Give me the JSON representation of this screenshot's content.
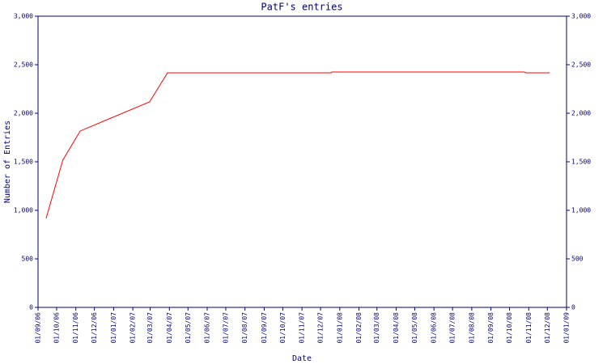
{
  "chart_data": {
    "type": "line",
    "title": "PatF's entries",
    "xlabel": "Date",
    "ylabel": "Number of Entries",
    "x": [
      "2006-09-14",
      "2006-10-11",
      "2006-11-08",
      "2007-02-28",
      "2007-03-29",
      "2007-12-18",
      "2007-12-19",
      "2008-10-25",
      "2008-10-27",
      "2008-12-05"
    ],
    "series": [
      {
        "name": "PatF",
        "color": "#ff0000",
        "values": [
          917,
          1517,
          1817,
          2117,
          2417,
          2417,
          2425,
          2425,
          2417,
          2417
        ]
      }
    ],
    "xlim": [
      "2006-09-01",
      "2009-01-01"
    ],
    "xticks": [
      {
        "value": "2006-09-01",
        "label": "01/09/06"
      },
      {
        "value": "2006-10-01",
        "label": "01/10/06"
      },
      {
        "value": "2006-11-01",
        "label": "01/11/06"
      },
      {
        "value": "2006-12-01",
        "label": "01/12/06"
      },
      {
        "value": "2007-01-01",
        "label": "01/01/07"
      },
      {
        "value": "2007-02-01",
        "label": "01/02/07"
      },
      {
        "value": "2007-03-01",
        "label": "01/03/07"
      },
      {
        "value": "2007-04-01",
        "label": "01/04/07"
      },
      {
        "value": "2007-05-01",
        "label": "01/05/07"
      },
      {
        "value": "2007-06-01",
        "label": "01/06/07"
      },
      {
        "value": "2007-07-01",
        "label": "01/07/07"
      },
      {
        "value": "2007-08-01",
        "label": "01/08/07"
      },
      {
        "value": "2007-09-01",
        "label": "01/09/07"
      },
      {
        "value": "2007-10-01",
        "label": "01/10/07"
      },
      {
        "value": "2007-11-01",
        "label": "01/11/07"
      },
      {
        "value": "2007-12-01",
        "label": "01/12/07"
      },
      {
        "value": "2008-01-01",
        "label": "01/01/08"
      },
      {
        "value": "2008-02-01",
        "label": "01/02/08"
      },
      {
        "value": "2008-03-01",
        "label": "01/03/08"
      },
      {
        "value": "2008-04-01",
        "label": "01/04/08"
      },
      {
        "value": "2008-05-01",
        "label": "01/05/08"
      },
      {
        "value": "2008-06-01",
        "label": "01/06/08"
      },
      {
        "value": "2008-07-01",
        "label": "01/07/08"
      },
      {
        "value": "2008-08-01",
        "label": "01/08/08"
      },
      {
        "value": "2008-09-01",
        "label": "01/09/08"
      },
      {
        "value": "2008-10-01",
        "label": "01/10/08"
      },
      {
        "value": "2008-11-01",
        "label": "01/11/08"
      },
      {
        "value": "2008-12-01",
        "label": "01/12/08"
      },
      {
        "value": "2009-01-01",
        "label": "01/01/09"
      }
    ],
    "ylim": [
      0,
      3000
    ],
    "yticks": [
      0,
      500,
      {
        "value": 1000,
        "label": "1,000"
      },
      {
        "value": 1500,
        "label": "1,500"
      },
      {
        "value": 2000,
        "label": "2,000"
      },
      {
        "value": 2500,
        "label": "2,500"
      },
      {
        "value": 3000,
        "label": "3,000"
      }
    ],
    "y2lim": [
      0,
      3000
    ],
    "y2ticks": [
      0,
      500,
      {
        "value": 1000,
        "label": "1,000"
      },
      {
        "value": 1500,
        "label": "1,500"
      },
      {
        "value": 2000,
        "label": "2,000"
      },
      {
        "value": 2500,
        "label": "2,500"
      },
      {
        "value": 3000,
        "label": "3,000"
      }
    ],
    "axis_color": "#000080",
    "grid": false
  }
}
